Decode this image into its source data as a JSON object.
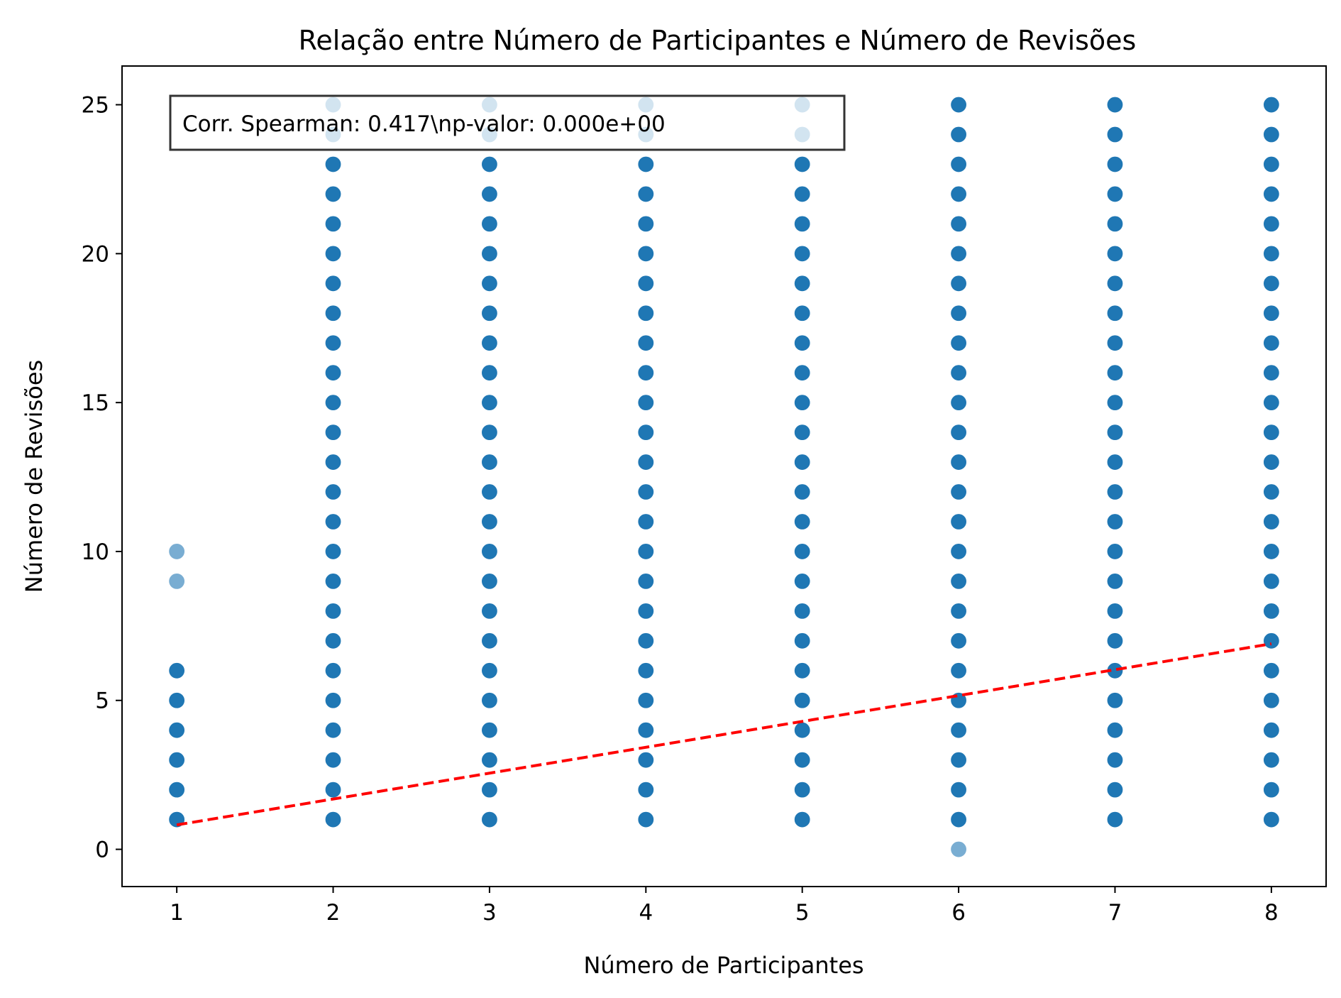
{
  "chart_data": {
    "type": "scatter",
    "title": "Relação entre Número de Participantes e Número de Revisões",
    "xlabel": "Número de Participantes",
    "ylabel": "Número de Revisões",
    "xlim": [
      0.65,
      8.35
    ],
    "ylim": [
      -1.25,
      26.3
    ],
    "x_ticks": [
      1,
      2,
      3,
      4,
      5,
      6,
      7,
      8
    ],
    "y_ticks": [
      0,
      5,
      10,
      15,
      20,
      25
    ],
    "grid": false,
    "point_color": "#1f77b4",
    "trend_color": "#ff0000",
    "annotation": "Corr. Spearman: 0.417\\np-valor: 0.000e+00",
    "series": [
      {
        "points": [
          {
            "x": 1,
            "y": [
              1,
              2,
              3,
              4,
              5,
              6,
              9,
              10
            ]
          },
          {
            "x": 2,
            "y": [
              1,
              2,
              3,
              4,
              5,
              6,
              7,
              8,
              9,
              10,
              11,
              12,
              13,
              14,
              15,
              16,
              17,
              18,
              19,
              20,
              21,
              22,
              23,
              24,
              25
            ]
          },
          {
            "x": 3,
            "y": [
              1,
              2,
              3,
              4,
              5,
              6,
              7,
              8,
              9,
              10,
              11,
              12,
              13,
              14,
              15,
              16,
              17,
              18,
              19,
              20,
              21,
              22,
              23,
              24,
              25
            ]
          },
          {
            "x": 4,
            "y": [
              1,
              2,
              3,
              4,
              5,
              6,
              7,
              8,
              9,
              10,
              11,
              12,
              13,
              14,
              15,
              16,
              17,
              18,
              19,
              20,
              21,
              22,
              23,
              24,
              25
            ]
          },
          {
            "x": 5,
            "y": [
              1,
              2,
              3,
              4,
              5,
              6,
              7,
              8,
              9,
              10,
              11,
              12,
              13,
              14,
              15,
              16,
              17,
              18,
              19,
              20,
              21,
              22,
              23,
              24,
              25
            ]
          },
          {
            "x": 6,
            "y": [
              0,
              1,
              2,
              3,
              4,
              5,
              6,
              7,
              8,
              9,
              10,
              11,
              12,
              13,
              14,
              15,
              16,
              17,
              18,
              19,
              20,
              21,
              22,
              23,
              24,
              25
            ]
          },
          {
            "x": 7,
            "y": [
              1,
              2,
              3,
              4,
              5,
              6,
              7,
              8,
              9,
              10,
              11,
              12,
              13,
              14,
              15,
              16,
              17,
              18,
              19,
              20,
              21,
              22,
              23,
              24,
              25
            ]
          },
          {
            "x": 8,
            "y": [
              1,
              2,
              3,
              4,
              5,
              6,
              7,
              8,
              9,
              10,
              11,
              12,
              13,
              14,
              15,
              16,
              17,
              18,
              19,
              20,
              21,
              22,
              23,
              24,
              25
            ]
          }
        ]
      }
    ],
    "faded_points": [
      {
        "x": 1,
        "y": 10
      },
      {
        "x": 1,
        "y": 9
      },
      {
        "x": 6,
        "y": 0
      }
    ],
    "trend_line": {
      "x": [
        1,
        8
      ],
      "y": [
        0.82,
        6.9
      ]
    }
  }
}
